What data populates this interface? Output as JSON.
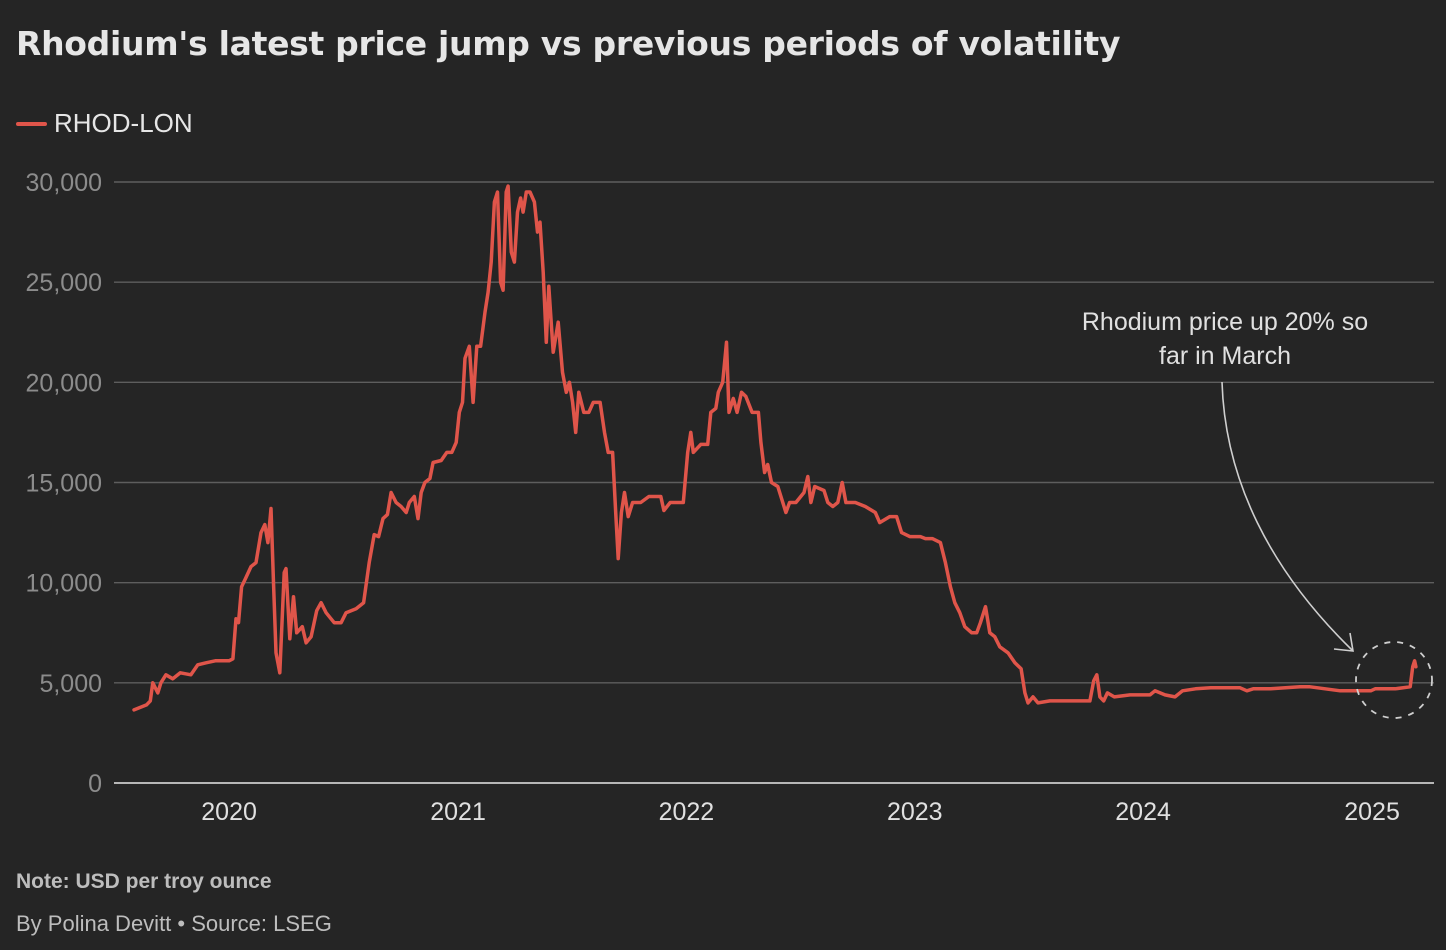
{
  "title": "Rhodium's latest price jump vs previous periods of volatility",
  "legend": [
    {
      "label": "RHOD-LON",
      "color": "#e0554a"
    }
  ],
  "note": "Note: USD per troy ounce",
  "byline": "By Polina Devitt • Source: LSEG",
  "chart_data": {
    "type": "line",
    "title": "Rhodium's latest price jump vs previous periods of volatility",
    "xlabel": "",
    "ylabel": "",
    "xlim": [
      "2019-07-01",
      "2025-04-10"
    ],
    "ylim": [
      0,
      30000
    ],
    "yticks": [
      0,
      5000,
      10000,
      15000,
      20000,
      25000,
      30000
    ],
    "ytick_labels": [
      "0",
      "5,000",
      "10,000",
      "15,000",
      "20,000",
      "25,000",
      "30,000"
    ],
    "xticks": [
      "2020-01-01",
      "2021-01-01",
      "2022-01-01",
      "2023-01-01",
      "2024-01-01",
      "2025-01-01"
    ],
    "xtick_labels": [
      "2020",
      "2021",
      "2022",
      "2023",
      "2024",
      "2025"
    ],
    "grid": "horizontal",
    "legend_position": "top-left",
    "background": "#252525",
    "annotation": {
      "text_lines": [
        "Rhodium price up 20% so",
        "far in March"
      ],
      "target_date": "2025-03-10",
      "target_value": 5500,
      "marker": "dashed-circle"
    },
    "series": [
      {
        "name": "RHOD-LON",
        "color": "#e0554a",
        "points": [
          [
            "2019-08-02",
            3650
          ],
          [
            "2019-08-22",
            3900
          ],
          [
            "2019-08-28",
            4100
          ],
          [
            "2019-09-01",
            5000
          ],
          [
            "2019-09-09",
            4500
          ],
          [
            "2019-09-14",
            5000
          ],
          [
            "2019-09-22",
            5400
          ],
          [
            "2019-10-03",
            5200
          ],
          [
            "2019-10-15",
            5500
          ],
          [
            "2019-11-01",
            5400
          ],
          [
            "2019-11-12",
            5900
          ],
          [
            "2019-11-25",
            6000
          ],
          [
            "2019-12-10",
            6100
          ],
          [
            "2020-01-01",
            6100
          ],
          [
            "2020-01-07",
            6200
          ],
          [
            "2020-01-12",
            8200
          ],
          [
            "2020-01-16",
            8000
          ],
          [
            "2020-01-21",
            9800
          ],
          [
            "2020-01-27",
            10200
          ],
          [
            "2020-02-05",
            10800
          ],
          [
            "2020-02-13",
            11000
          ],
          [
            "2020-02-21",
            12500
          ],
          [
            "2020-02-27",
            12900
          ],
          [
            "2020-03-03",
            12000
          ],
          [
            "2020-03-08",
            13700
          ],
          [
            "2020-03-12",
            10000
          ],
          [
            "2020-03-16",
            6500
          ],
          [
            "2020-03-22",
            5500
          ],
          [
            "2020-03-29",
            10500
          ],
          [
            "2020-04-01",
            10700
          ],
          [
            "2020-04-07",
            7200
          ],
          [
            "2020-04-13",
            9300
          ],
          [
            "2020-04-18",
            7500
          ],
          [
            "2020-04-27",
            7800
          ],
          [
            "2020-05-03",
            7000
          ],
          [
            "2020-05-11",
            7300
          ],
          [
            "2020-05-20",
            8600
          ],
          [
            "2020-05-27",
            9000
          ],
          [
            "2020-06-04",
            8500
          ],
          [
            "2020-06-17",
            8000
          ],
          [
            "2020-06-28",
            8000
          ],
          [
            "2020-07-06",
            8500
          ],
          [
            "2020-07-22",
            8700
          ],
          [
            "2020-08-03",
            9000
          ],
          [
            "2020-08-12",
            11000
          ],
          [
            "2020-08-20",
            12400
          ],
          [
            "2020-08-27",
            12300
          ],
          [
            "2020-09-03",
            13200
          ],
          [
            "2020-09-10",
            13400
          ],
          [
            "2020-09-16",
            14500
          ],
          [
            "2020-09-24",
            14000
          ],
          [
            "2020-10-02",
            13800
          ],
          [
            "2020-10-10",
            13500
          ],
          [
            "2020-10-15",
            14000
          ],
          [
            "2020-10-23",
            14300
          ],
          [
            "2020-10-29",
            13200
          ],
          [
            "2020-11-03",
            14500
          ],
          [
            "2020-11-09",
            15000
          ],
          [
            "2020-11-17",
            15200
          ],
          [
            "2020-11-22",
            16000
          ],
          [
            "2020-12-05",
            16100
          ],
          [
            "2020-12-14",
            16500
          ],
          [
            "2020-12-22",
            16500
          ],
          [
            "2020-12-29",
            17000
          ],
          [
            "2021-01-03",
            18500
          ],
          [
            "2021-01-08",
            19000
          ],
          [
            "2021-01-12",
            21200
          ],
          [
            "2021-01-19",
            21800
          ],
          [
            "2021-01-25",
            19000
          ],
          [
            "2021-01-31",
            21800
          ],
          [
            "2021-02-06",
            21800
          ],
          [
            "2021-02-13",
            23500
          ],
          [
            "2021-02-18",
            24500
          ],
          [
            "2021-02-23",
            26000
          ],
          [
            "2021-02-28",
            29000
          ],
          [
            "2021-03-05",
            29500
          ],
          [
            "2021-03-10",
            25000
          ],
          [
            "2021-03-14",
            24600
          ],
          [
            "2021-03-19",
            29500
          ],
          [
            "2021-03-22",
            29800
          ],
          [
            "2021-03-27",
            26500
          ],
          [
            "2021-04-01",
            26000
          ],
          [
            "2021-04-06",
            28500
          ],
          [
            "2021-04-11",
            29200
          ],
          [
            "2021-04-15",
            28500
          ],
          [
            "2021-04-20",
            29500
          ],
          [
            "2021-04-26",
            29500
          ],
          [
            "2021-05-03",
            29000
          ],
          [
            "2021-05-08",
            27500
          ],
          [
            "2021-05-12",
            28000
          ],
          [
            "2021-05-17",
            25500
          ],
          [
            "2021-05-22",
            22000
          ],
          [
            "2021-05-26",
            24800
          ],
          [
            "2021-06-02",
            21500
          ],
          [
            "2021-06-10",
            23000
          ],
          [
            "2021-06-17",
            20500
          ],
          [
            "2021-06-23",
            19500
          ],
          [
            "2021-06-28",
            20000
          ],
          [
            "2021-07-03",
            19000
          ],
          [
            "2021-07-08",
            17500
          ],
          [
            "2021-07-13",
            19500
          ],
          [
            "2021-07-21",
            18500
          ],
          [
            "2021-07-29",
            18500
          ],
          [
            "2021-08-05",
            19000
          ],
          [
            "2021-08-16",
            19000
          ],
          [
            "2021-08-23",
            17500
          ],
          [
            "2021-08-29",
            16500
          ],
          [
            "2021-09-05",
            16500
          ],
          [
            "2021-09-10",
            13500
          ],
          [
            "2021-09-14",
            11200
          ],
          [
            "2021-09-19",
            13500
          ],
          [
            "2021-09-24",
            14500
          ],
          [
            "2021-09-30",
            13300
          ],
          [
            "2021-10-07",
            14000
          ],
          [
            "2021-10-20",
            14000
          ],
          [
            "2021-11-02",
            14300
          ],
          [
            "2021-11-21",
            14300
          ],
          [
            "2021-11-26",
            13600
          ],
          [
            "2021-12-06",
            14000
          ],
          [
            "2021-12-27",
            14000
          ],
          [
            "2022-01-03",
            16500
          ],
          [
            "2022-01-08",
            17500
          ],
          [
            "2022-01-12",
            16500
          ],
          [
            "2022-01-24",
            16900
          ],
          [
            "2022-02-04",
            16900
          ],
          [
            "2022-02-09",
            18500
          ],
          [
            "2022-02-17",
            18700
          ],
          [
            "2022-02-21",
            19500
          ],
          [
            "2022-02-28",
            20000
          ],
          [
            "2022-03-06",
            22000
          ],
          [
            "2022-03-10",
            18500
          ],
          [
            "2022-03-17",
            19200
          ],
          [
            "2022-03-23",
            18500
          ],
          [
            "2022-03-30",
            19500
          ],
          [
            "2022-04-06",
            19300
          ],
          [
            "2022-04-16",
            18500
          ],
          [
            "2022-04-26",
            18500
          ],
          [
            "2022-04-30",
            17000
          ],
          [
            "2022-05-06",
            15500
          ],
          [
            "2022-05-11",
            15900
          ],
          [
            "2022-05-17",
            15000
          ],
          [
            "2022-05-27",
            14800
          ],
          [
            "2022-06-04",
            14000
          ],
          [
            "2022-06-09",
            13500
          ],
          [
            "2022-06-15",
            14000
          ],
          [
            "2022-06-25",
            14000
          ],
          [
            "2022-07-08",
            14500
          ],
          [
            "2022-07-14",
            15300
          ],
          [
            "2022-07-19",
            14000
          ],
          [
            "2022-07-25",
            14800
          ],
          [
            "2022-08-09",
            14600
          ],
          [
            "2022-08-15",
            14000
          ],
          [
            "2022-08-23",
            13800
          ],
          [
            "2022-08-31",
            14000
          ],
          [
            "2022-09-07",
            15000
          ],
          [
            "2022-09-13",
            14000
          ],
          [
            "2022-09-28",
            14000
          ],
          [
            "2022-10-14",
            13800
          ],
          [
            "2022-10-30",
            13500
          ],
          [
            "2022-11-06",
            13000
          ],
          [
            "2022-11-22",
            13300
          ],
          [
            "2022-12-03",
            13300
          ],
          [
            "2022-12-11",
            12500
          ],
          [
            "2022-12-24",
            12300
          ],
          [
            "2023-01-10",
            12300
          ],
          [
            "2023-01-18",
            12200
          ],
          [
            "2023-01-29",
            12200
          ],
          [
            "2023-02-11",
            12000
          ],
          [
            "2023-02-19",
            11000
          ],
          [
            "2023-02-27",
            9800
          ],
          [
            "2023-03-06",
            9000
          ],
          [
            "2023-03-14",
            8500
          ],
          [
            "2023-03-22",
            7800
          ],
          [
            "2023-04-02",
            7500
          ],
          [
            "2023-04-10",
            7500
          ],
          [
            "2023-04-16",
            8000
          ],
          [
            "2023-04-24",
            8800
          ],
          [
            "2023-05-01",
            7500
          ],
          [
            "2023-05-09",
            7300
          ],
          [
            "2023-05-17",
            6800
          ],
          [
            "2023-05-30",
            6500
          ],
          [
            "2023-06-10",
            6000
          ],
          [
            "2023-06-20",
            5700
          ],
          [
            "2023-06-26",
            4500
          ],
          [
            "2023-07-01",
            4000
          ],
          [
            "2023-07-09",
            4300
          ],
          [
            "2023-07-17",
            4000
          ],
          [
            "2023-08-05",
            4100
          ],
          [
            "2023-10-08",
            4100
          ],
          [
            "2023-10-14",
            5100
          ],
          [
            "2023-10-19",
            5400
          ],
          [
            "2023-10-24",
            4300
          ],
          [
            "2023-10-30",
            4100
          ],
          [
            "2023-11-05",
            4500
          ],
          [
            "2023-11-16",
            4300
          ],
          [
            "2023-12-11",
            4400
          ],
          [
            "2024-01-12",
            4400
          ],
          [
            "2024-01-20",
            4600
          ],
          [
            "2024-02-05",
            4400
          ],
          [
            "2024-02-21",
            4300
          ],
          [
            "2024-03-04",
            4600
          ],
          [
            "2024-03-25",
            4700
          ],
          [
            "2024-04-18",
            4750
          ],
          [
            "2024-06-04",
            4750
          ],
          [
            "2024-06-15",
            4600
          ],
          [
            "2024-06-25",
            4700
          ],
          [
            "2024-07-23",
            4700
          ],
          [
            "2024-09-08",
            4800
          ],
          [
            "2024-09-24",
            4800
          ],
          [
            "2024-11-11",
            4600
          ],
          [
            "2024-12-30",
            4600
          ],
          [
            "2025-01-06",
            4700
          ],
          [
            "2025-02-07",
            4700
          ],
          [
            "2025-03-03",
            4800
          ],
          [
            "2025-03-07",
            5800
          ],
          [
            "2025-03-10",
            6100
          ],
          [
            "2025-03-12",
            5800
          ]
        ]
      }
    ]
  }
}
